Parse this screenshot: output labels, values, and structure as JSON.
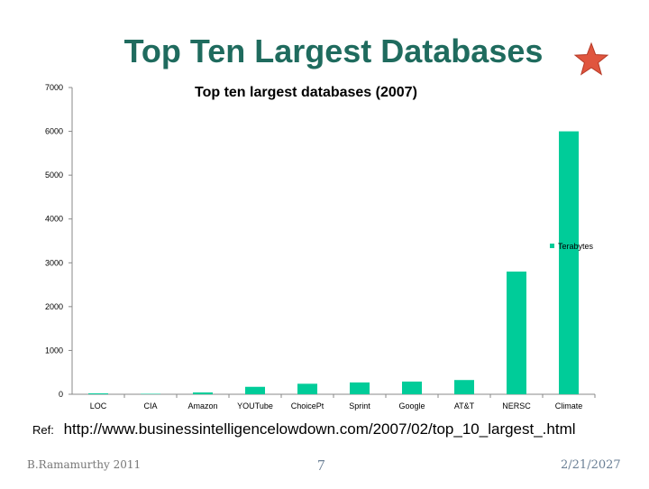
{
  "slide": {
    "title": "Top Ten Largest Databases",
    "ref_label": "Ref:",
    "ref_url": "http://www.businessintelligencelowdown.com/2007/02/top_10_largest_.html",
    "footer_left": "B.Ramamurthy 2011",
    "footer_center": "7",
    "footer_right": "2/21/2027",
    "star_color": "#e0553e"
  },
  "chart_data": {
    "type": "bar",
    "title": "Top ten largest databases (2007)",
    "categories": [
      "LOC",
      "CIA",
      "Amazon",
      "YOUTube",
      "ChoicePt",
      "Sprint",
      "Google",
      "AT&T",
      "NERSC",
      "Climate"
    ],
    "series": [
      {
        "name": "Terabytes",
        "values": [
          20,
          10,
          42,
          170,
          240,
          270,
          290,
          325,
          2800,
          6000
        ],
        "color": "#00cc99"
      }
    ],
    "ylim": [
      0,
      7000
    ],
    "yticks": [
      0,
      1000,
      2000,
      3000,
      4000,
      5000,
      6000,
      7000
    ],
    "legend_position": "right",
    "grid": false
  }
}
